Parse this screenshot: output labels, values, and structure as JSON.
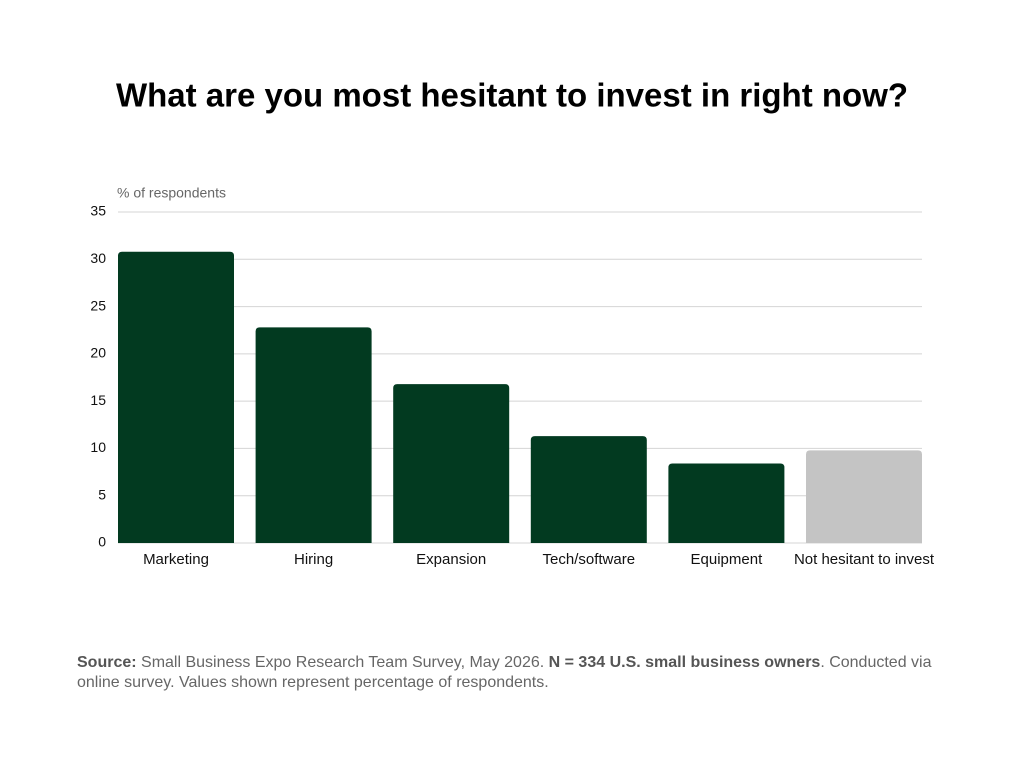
{
  "chart_data": {
    "type": "bar",
    "title": "What are you most hesitant to invest in right now?",
    "y_label": "% of respondents",
    "categories": [
      "Marketing",
      "Hiring",
      "Expansion",
      "Tech/software",
      "Equipment",
      "Not hesitant to invest"
    ],
    "values": [
      30.8,
      22.8,
      16.8,
      11.3,
      8.4,
      9.8
    ],
    "colors": [
      "#023a20",
      "#023a20",
      "#023a20",
      "#023a20",
      "#023a20",
      "#c4c4c4"
    ],
    "ylim": [
      0,
      35
    ],
    "yticks": [
      0,
      5,
      10,
      15,
      20,
      25,
      30,
      35
    ],
    "grid": true,
    "footnote": {
      "source_label": "Source:",
      "source_text": "Small Business Expo Research Team Survey, May 2026.",
      "sample": "N = 334 U.S. small business owners",
      "rest": ". Conducted via online survey. Values shown represent percentage of respondents."
    }
  }
}
